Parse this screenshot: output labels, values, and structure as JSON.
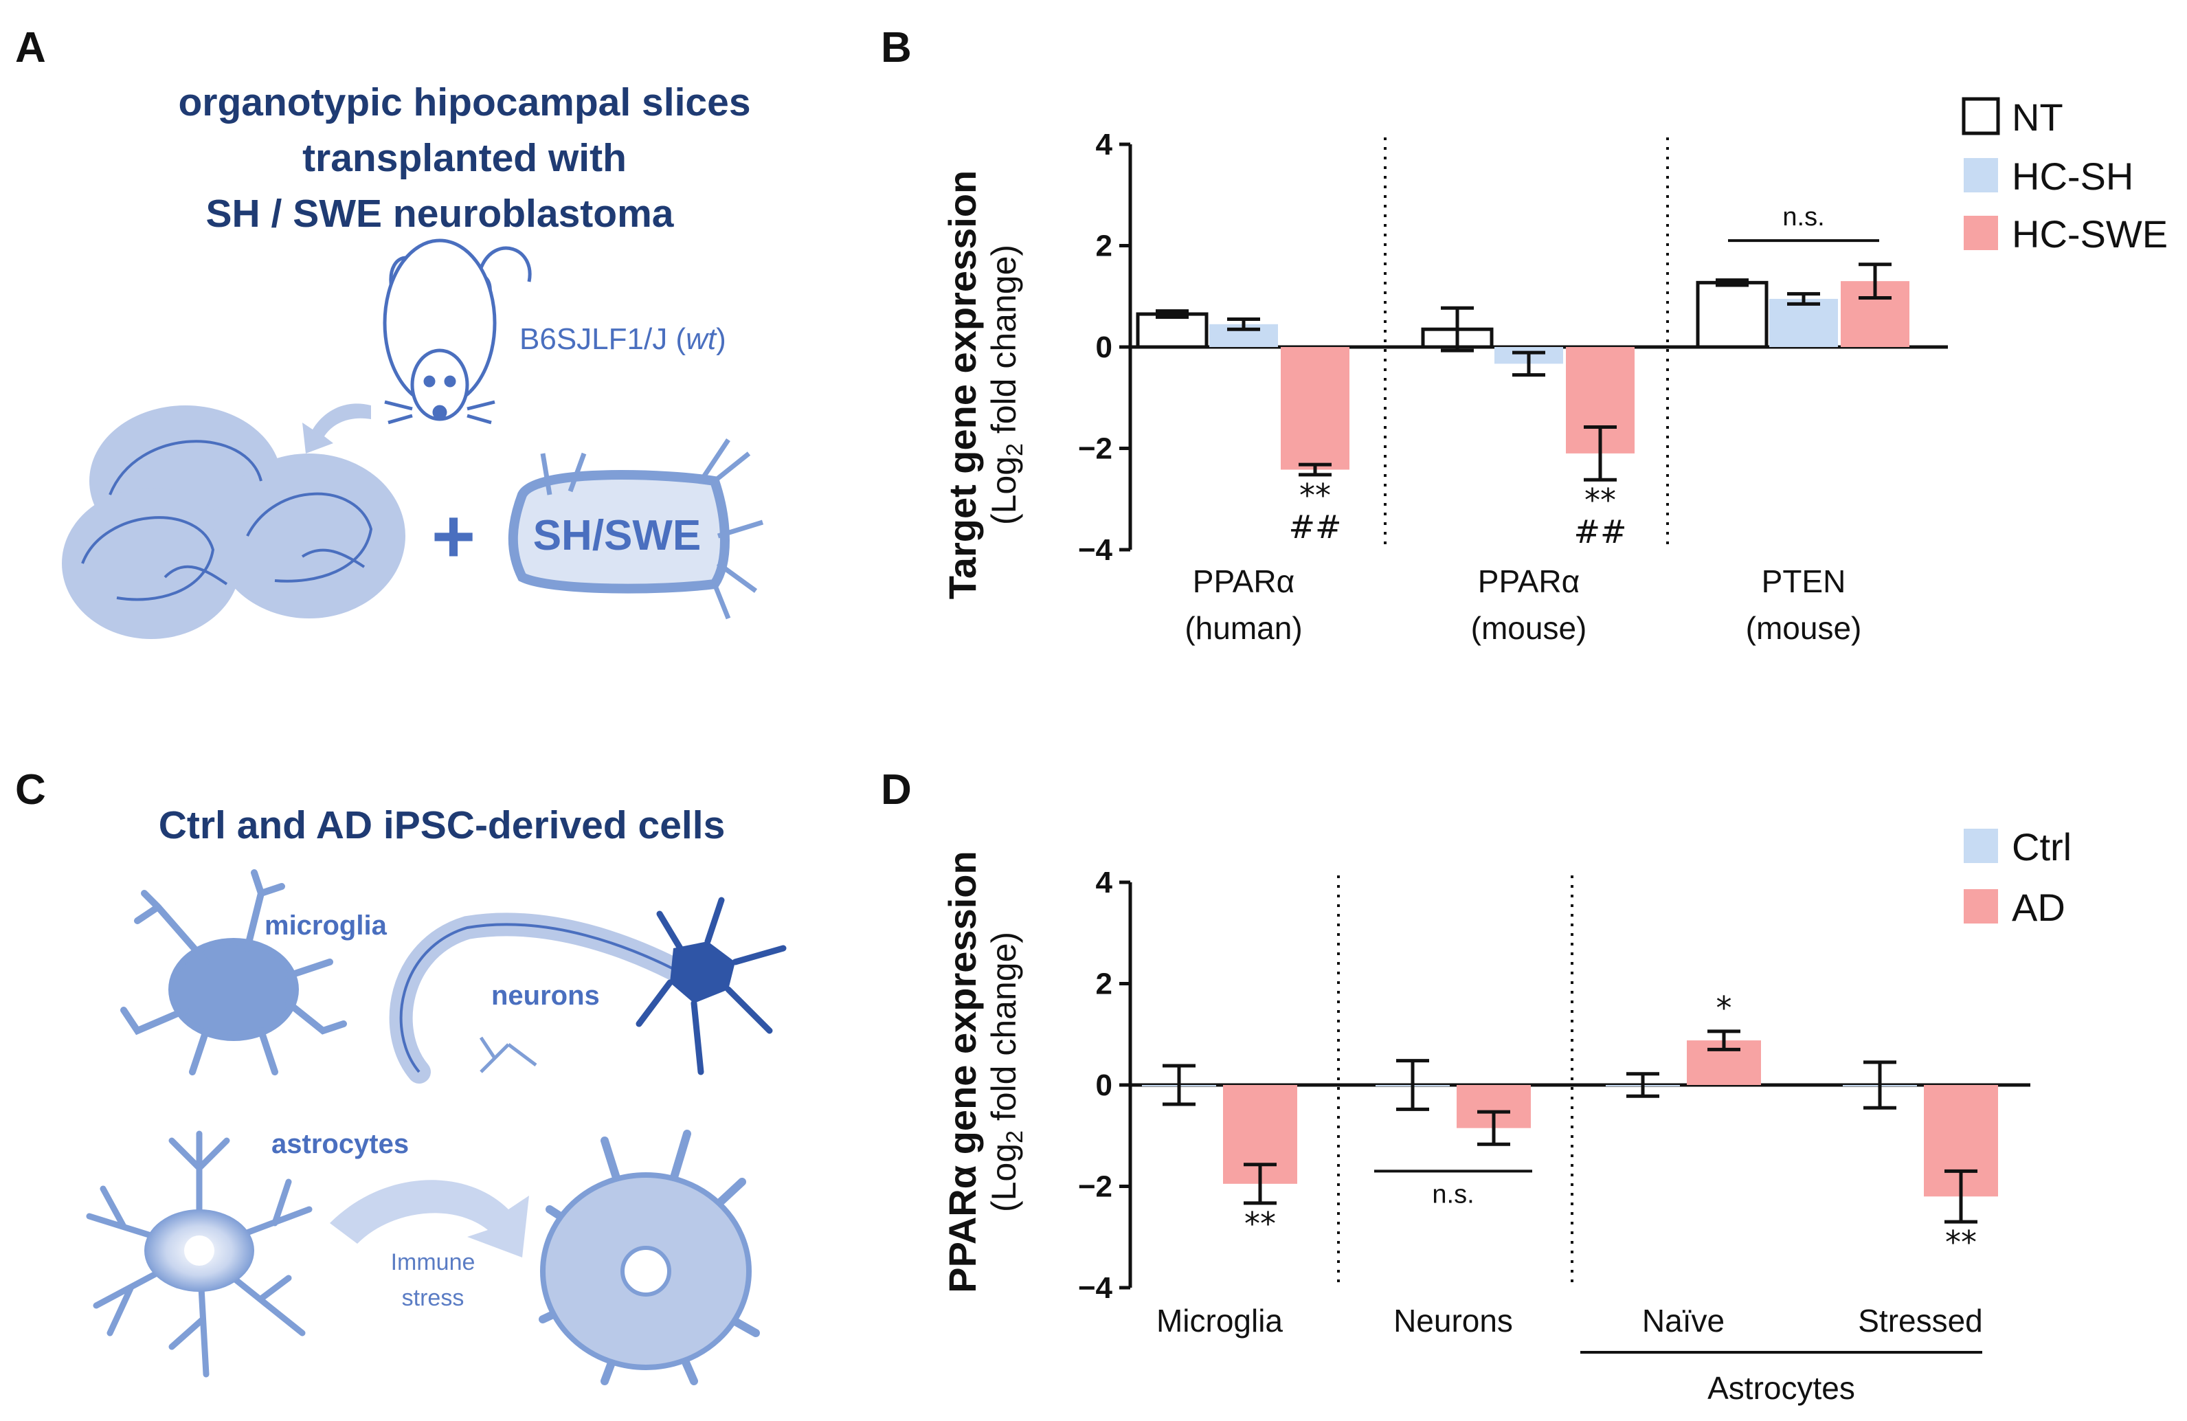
{
  "colors": {
    "nt_fill": "#ffffff",
    "ctrl": "#c7dbf3",
    "ad": "#f7a3a3",
    "illustration": "#5b80c8",
    "illustration_light": "#b9c9e8",
    "title": "#1f3b73"
  },
  "panel_a": {
    "letter": "A",
    "title_lines": [
      "organotypic hipocampal slices",
      "transplanted with",
      "SH / SWE neuroblastoma"
    ],
    "mouse_strain_prefix": "B6SJLF1/J (",
    "mouse_strain_italic": "wt",
    "mouse_strain_suffix": ")",
    "plus": "+",
    "cells_label": "SH/SWE",
    "icons": [
      "mouse-icon",
      "arrow-icon",
      "brain-slice-icon",
      "neuroblastoma-cell-icon"
    ]
  },
  "panel_c": {
    "letter": "C",
    "title": "Ctrl and AD iPSC-derived cells",
    "microglia_label": "microglia",
    "neurons_label": "neurons",
    "astrocytes_label": "astrocytes",
    "immune_line1": "Immune",
    "immune_line2": "stress",
    "icons": [
      "microglia-icon",
      "neuron-icon",
      "astrocyte-icon",
      "stressed-astrocyte-icon",
      "curved-arrow-icon"
    ]
  },
  "chart_data": [
    {
      "panel": "B",
      "type": "bar",
      "ylabel": "Target gene expression",
      "ylabel_sub_pre": "(Log",
      "ylabel_sub_subscript": "2",
      "ylabel_sub_post": " fold change)",
      "ylim": [
        -4,
        4
      ],
      "yticks": [
        "4",
        "2",
        "0",
        "−2",
        "−4"
      ],
      "yticks_values": [
        4,
        2,
        0,
        -2,
        -4
      ],
      "categories": [
        {
          "line1": "PPARα",
          "line2": "(human)"
        },
        {
          "line1": "PPARα",
          "line2": "(mouse)"
        },
        {
          "line1": "PTEN",
          "line2": "(mouse)"
        }
      ],
      "series": [
        {
          "name": "NT",
          "values": [
            0.65,
            0.35,
            1.27
          ],
          "errors": [
            0.06,
            0.42,
            0.05
          ]
        },
        {
          "name": "HC-SH",
          "values": [
            0.45,
            -0.33,
            0.95
          ],
          "errors": [
            0.1,
            0.22,
            0.1
          ]
        },
        {
          "name": "HC-SWE",
          "values": [
            -2.42,
            -2.1,
            1.3
          ],
          "errors": [
            0.1,
            0.52,
            0.33
          ]
        }
      ],
      "annotations": [
        {
          "category": 0,
          "series": 2,
          "lines": [
            "**",
            "##"
          ]
        },
        {
          "category": 1,
          "series": 2,
          "lines": [
            "**",
            "##"
          ]
        }
      ],
      "ns_bracket": {
        "category": 2,
        "text": "n.s.",
        "y": 2.1
      }
    },
    {
      "panel": "D",
      "type": "bar",
      "ylabel": "PPARα gene expression",
      "ylabel_sub_pre": "(Log",
      "ylabel_sub_subscript": "2",
      "ylabel_sub_post": " fold change)",
      "ylim": [
        -4,
        4
      ],
      "yticks": [
        "4",
        "2",
        "0",
        "−2",
        "−4"
      ],
      "yticks_values": [
        4,
        2,
        0,
        -2,
        -4
      ],
      "categories": [
        "Microglia",
        "Neurons",
        "Naïve",
        "Stressed"
      ],
      "group_label": "Astrocytes",
      "series": [
        {
          "name": "Ctrl",
          "values": [
            0.0,
            0.0,
            0.0,
            0.0
          ],
          "errors": [
            0.38,
            0.48,
            0.22,
            0.45
          ]
        },
        {
          "name": "AD",
          "values": [
            -1.95,
            -0.85,
            0.88,
            -2.2
          ],
          "errors": [
            0.38,
            0.32,
            0.18,
            0.5
          ]
        }
      ],
      "annotations": [
        {
          "category": 0,
          "series": 1,
          "lines": [
            "**"
          ]
        },
        {
          "category": 2,
          "series": 1,
          "lines": [
            "*"
          ]
        },
        {
          "category": 3,
          "series": 1,
          "lines": [
            "**"
          ]
        }
      ],
      "ns_bracket": {
        "category": 1,
        "text": "n.s.",
        "y": -1.7
      }
    }
  ]
}
